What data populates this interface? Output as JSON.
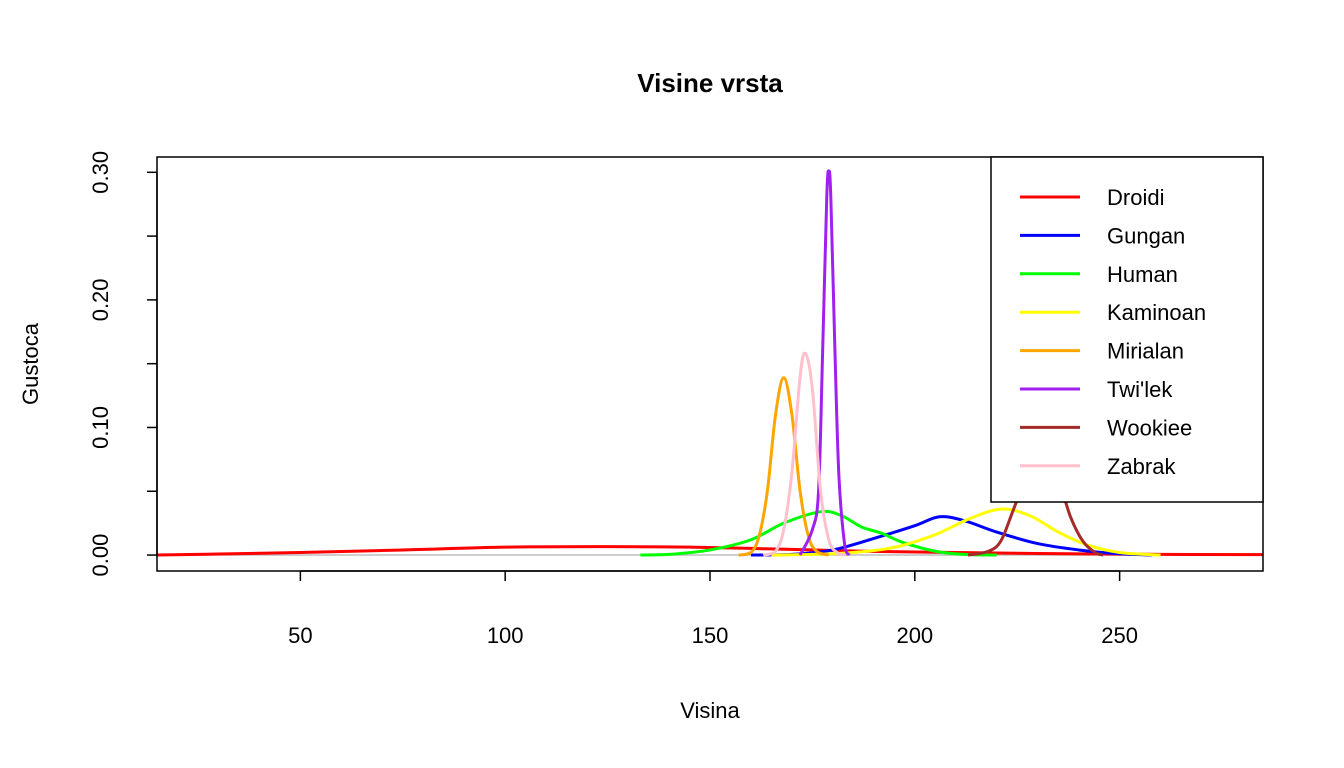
{
  "chart_data": {
    "type": "line",
    "title": "Visine vrsta",
    "xlabel": "Visina",
    "ylabel": "Gustoca",
    "xlim": [
      15,
      285
    ],
    "ylim": [
      -0.0125,
      0.312
    ],
    "xticks": [
      50,
      100,
      150,
      200,
      250
    ],
    "xtick_labels": [
      "50",
      "100",
      "150",
      "200",
      "250"
    ],
    "yticks": [
      0,
      0.05,
      0.1,
      0.15,
      0.2,
      0.25,
      0.3
    ],
    "ytick_labels": [
      {
        "value": 0,
        "label": "0.00"
      },
      {
        "value": 0.1,
        "label": "0.10"
      },
      {
        "value": 0.2,
        "label": "0.20"
      },
      {
        "value": 0.3,
        "label": "0.30"
      }
    ],
    "grid": false,
    "zero_line_color": "#bebebe",
    "legend_position": "top-right",
    "series": [
      {
        "name": "Droidi",
        "color": "#ff0000",
        "x": [
          15,
          30,
          50,
          75,
          100,
          125,
          145,
          165,
          185,
          205,
          230,
          260,
          285
        ],
        "y": [
          0.0,
          0.0008,
          0.002,
          0.004,
          0.0062,
          0.0066,
          0.0062,
          0.0048,
          0.0032,
          0.0022,
          0.0012,
          0.0005,
          0.0003
        ]
      },
      {
        "name": "Gungan",
        "color": "#0000ff",
        "x": [
          160,
          170,
          180,
          190,
          200,
          206,
          212,
          220,
          230,
          240,
          250,
          258
        ],
        "y": [
          0,
          0.0005,
          0.004,
          0.013,
          0.023,
          0.03,
          0.027,
          0.018,
          0.009,
          0.004,
          0.001,
          0
        ]
      },
      {
        "name": "Human",
        "color": "#00ff00",
        "x": [
          133,
          140,
          150,
          160,
          168,
          177,
          182,
          187,
          192,
          197,
          205,
          212,
          220
        ],
        "y": [
          0,
          0.0005,
          0.004,
          0.012,
          0.025,
          0.034,
          0.031,
          0.022,
          0.017,
          0.01,
          0.003,
          0.0005,
          0
        ]
      },
      {
        "name": "Kaminoan",
        "color": "#ffff00",
        "x": [
          165,
          175,
          185,
          195,
          205,
          213,
          221,
          228,
          235,
          242,
          250,
          260
        ],
        "y": [
          0,
          0.0005,
          0.002,
          0.006,
          0.016,
          0.028,
          0.036,
          0.031,
          0.018,
          0.008,
          0.002,
          0
        ]
      },
      {
        "name": "Mirialan",
        "color": "#ffa500",
        "x": [
          157,
          160,
          162,
          164,
          166,
          168,
          170,
          172,
          174,
          176,
          179
        ],
        "y": [
          0,
          0.002,
          0.015,
          0.05,
          0.11,
          0.139,
          0.11,
          0.05,
          0.015,
          0.003,
          0
        ]
      },
      {
        "name": "Twi'lek",
        "color": "#a020f0",
        "x": [
          172,
          175,
          176.5,
          177.5,
          178.5,
          179,
          179.5,
          180.5,
          181.5,
          183,
          184
        ],
        "y": [
          0,
          0.02,
          0.05,
          0.16,
          0.28,
          0.301,
          0.28,
          0.16,
          0.06,
          0.005,
          0
        ]
      },
      {
        "name": "Wookiee",
        "color": "#a52a2a",
        "x": [
          213,
          218,
          221,
          224,
          227,
          231,
          235,
          238,
          241,
          244,
          246
        ],
        "y": [
          0,
          0.003,
          0.011,
          0.035,
          0.059,
          0.08,
          0.059,
          0.03,
          0.011,
          0.002,
          0
        ]
      },
      {
        "name": "Zabrak",
        "color": "#ffc0cb",
        "x": [
          163,
          166,
          168,
          170,
          172,
          173.3,
          175,
          177,
          179,
          181,
          183
        ],
        "y": [
          0,
          0.003,
          0.02,
          0.065,
          0.14,
          0.158,
          0.13,
          0.05,
          0.012,
          0.002,
          0
        ]
      }
    ]
  }
}
